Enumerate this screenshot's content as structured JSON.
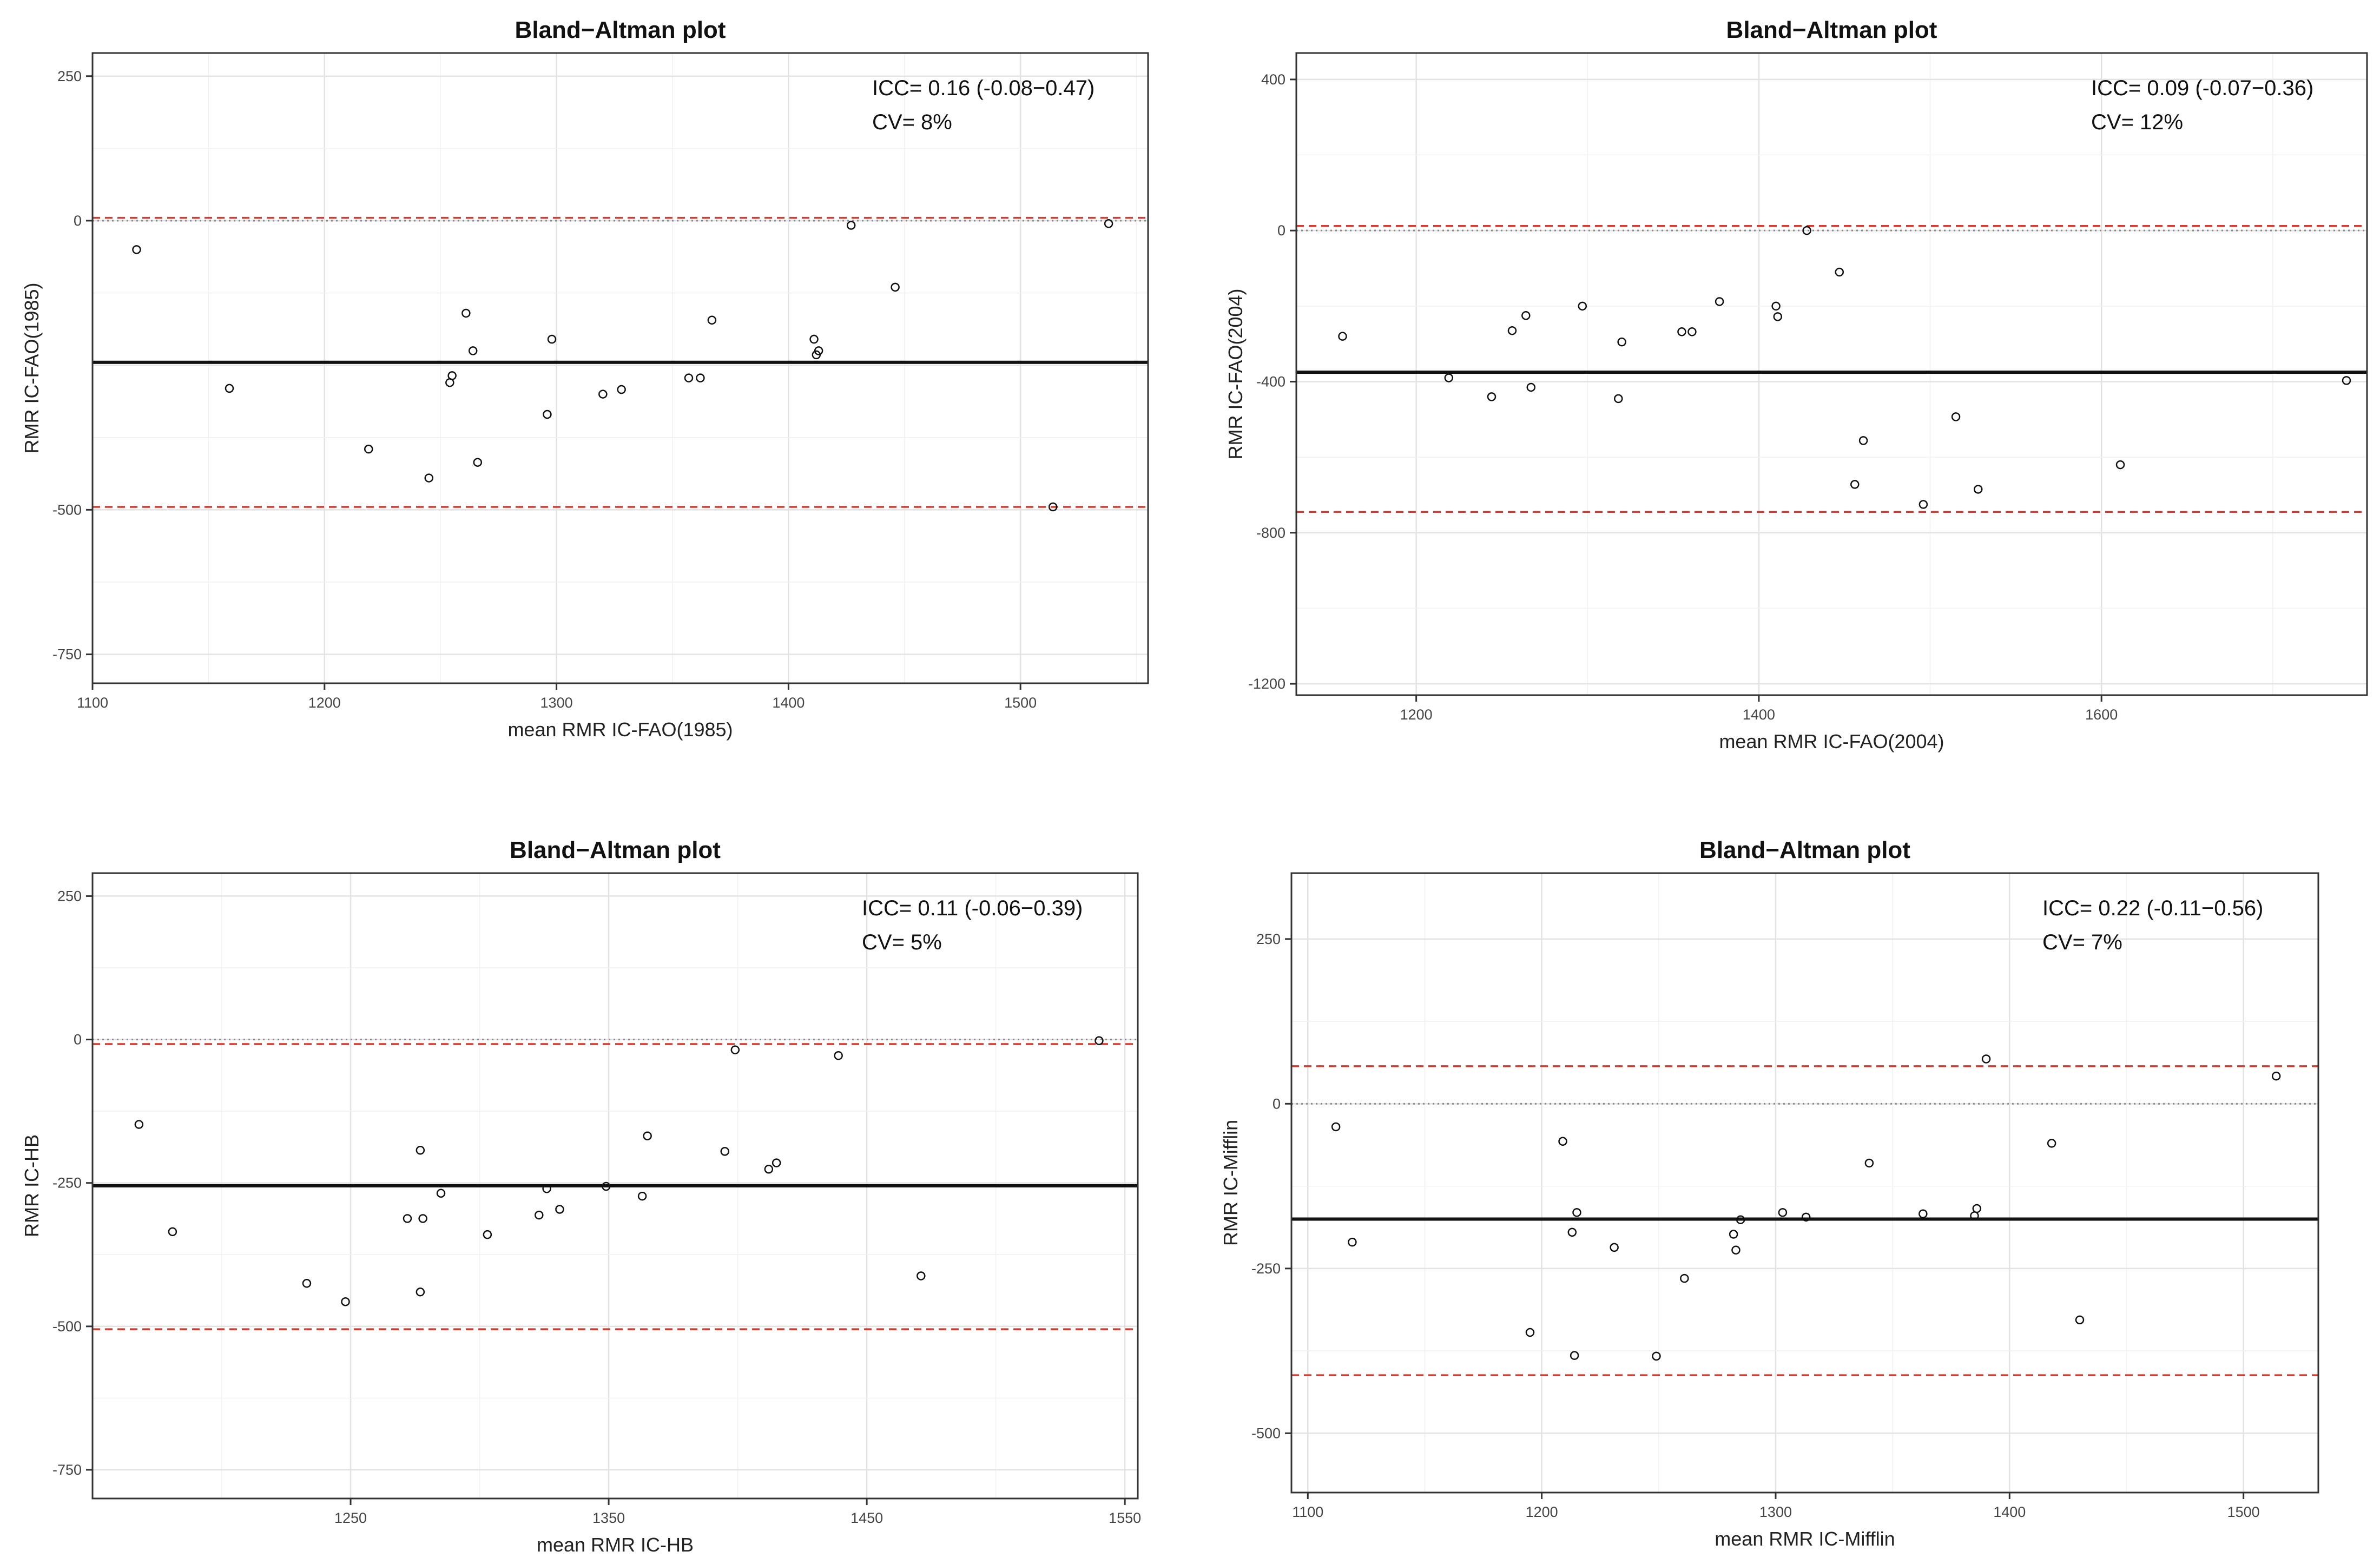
{
  "chart_data": [
    {
      "type": "scatter",
      "title": "Bland−Altman plot",
      "xlabel": "mean RMR IC-FAO(1985)",
      "ylabel": "RMR IC-FAO(1985)",
      "xlim": [
        1100,
        1555
      ],
      "ylim": [
        -800,
        290
      ],
      "xticks": [
        1100,
        1200,
        1300,
        1400,
        1500
      ],
      "yticks": [
        250,
        0,
        -500,
        -750
      ],
      "grid": true,
      "annotations": [
        "ICC= 0.16 (-0.08−0.47)",
        "CV= 8%"
      ],
      "mean_line": -245,
      "limits_of_agreement": [
        5,
        -495
      ],
      "zero_line": 0,
      "points": [
        {
          "x": 1119,
          "y": -50
        },
        {
          "x": 1159,
          "y": -290
        },
        {
          "x": 1219,
          "y": -395
        },
        {
          "x": 1245,
          "y": -445
        },
        {
          "x": 1254,
          "y": -280
        },
        {
          "x": 1255,
          "y": -268
        },
        {
          "x": 1261,
          "y": -160
        },
        {
          "x": 1264,
          "y": -225
        },
        {
          "x": 1266,
          "y": -418
        },
        {
          "x": 1296,
          "y": -335
        },
        {
          "x": 1298,
          "y": -205
        },
        {
          "x": 1320,
          "y": -300
        },
        {
          "x": 1328,
          "y": -292
        },
        {
          "x": 1357,
          "y": -272
        },
        {
          "x": 1362,
          "y": -272
        },
        {
          "x": 1367,
          "y": -172
        },
        {
          "x": 1411,
          "y": -205
        },
        {
          "x": 1412,
          "y": -232
        },
        {
          "x": 1413,
          "y": -225
        },
        {
          "x": 1427,
          "y": -8
        },
        {
          "x": 1446,
          "y": -115
        },
        {
          "x": 1514,
          "y": -495
        },
        {
          "x": 1538,
          "y": -5
        }
      ]
    },
    {
      "type": "scatter",
      "title": "Bland−Altman plot",
      "xlabel": "mean RMR IC-FAO(2004)",
      "ylabel": "RMR IC-FAO(2004)",
      "xlim": [
        1130,
        1755
      ],
      "ylim": [
        -1230,
        470
      ],
      "xticks": [
        1200,
        1400,
        1600
      ],
      "yticks": [
        400,
        0,
        -400,
        -800,
        -1200
      ],
      "grid": true,
      "annotations": [
        "ICC= 0.09 (-0.07−0.36)",
        "CV= 12%"
      ],
      "mean_line": -375,
      "limits_of_agreement": [
        12,
        -745
      ],
      "zero_line": 0,
      "points": [
        {
          "x": 1157,
          "y": -280
        },
        {
          "x": 1219,
          "y": -390
        },
        {
          "x": 1244,
          "y": -440
        },
        {
          "x": 1256,
          "y": -265
        },
        {
          "x": 1264,
          "y": -225
        },
        {
          "x": 1267,
          "y": -415
        },
        {
          "x": 1297,
          "y": -200
        },
        {
          "x": 1318,
          "y": -445
        },
        {
          "x": 1320,
          "y": -295
        },
        {
          "x": 1355,
          "y": -268
        },
        {
          "x": 1361,
          "y": -268
        },
        {
          "x": 1377,
          "y": -188
        },
        {
          "x": 1410,
          "y": -200
        },
        {
          "x": 1411,
          "y": -228
        },
        {
          "x": 1428,
          "y": 0
        },
        {
          "x": 1447,
          "y": -110
        },
        {
          "x": 1456,
          "y": -672
        },
        {
          "x": 1461,
          "y": -556
        },
        {
          "x": 1496,
          "y": -725
        },
        {
          "x": 1515,
          "y": -493
        },
        {
          "x": 1528,
          "y": -685
        },
        {
          "x": 1611,
          "y": -620
        },
        {
          "x": 1743,
          "y": -397
        }
      ]
    },
    {
      "type": "scatter",
      "title": "Bland−Altman plot",
      "xlabel": "mean RMR IC-HB",
      "ylabel": "RMR IC-HB",
      "xlim": [
        1150,
        1555
      ],
      "ylim": [
        -800,
        290
      ],
      "xticks": [
        1250,
        1350,
        1450,
        1550
      ],
      "yticks": [
        250,
        0,
        -250,
        -500,
        -750
      ],
      "grid": true,
      "annotations": [
        "ICC= 0.11 (-0.06−0.39)",
        "CV= 5%"
      ],
      "mean_line": -255,
      "limits_of_agreement": [
        -8,
        -505
      ],
      "zero_line": 0,
      "points": [
        {
          "x": 1168,
          "y": -148
        },
        {
          "x": 1181,
          "y": -335
        },
        {
          "x": 1233,
          "y": -425
        },
        {
          "x": 1248,
          "y": -457
        },
        {
          "x": 1272,
          "y": -312
        },
        {
          "x": 1277,
          "y": -193
        },
        {
          "x": 1278,
          "y": -312
        },
        {
          "x": 1277,
          "y": -440
        },
        {
          "x": 1285,
          "y": -268
        },
        {
          "x": 1303,
          "y": -340
        },
        {
          "x": 1323,
          "y": -306
        },
        {
          "x": 1326,
          "y": -260
        },
        {
          "x": 1331,
          "y": -296
        },
        {
          "x": 1349,
          "y": -256
        },
        {
          "x": 1363,
          "y": -273
        },
        {
          "x": 1365,
          "y": -168
        },
        {
          "x": 1395,
          "y": -195
        },
        {
          "x": 1399,
          "y": -18
        },
        {
          "x": 1412,
          "y": -226
        },
        {
          "x": 1415,
          "y": -215
        },
        {
          "x": 1439,
          "y": -28
        },
        {
          "x": 1471,
          "y": -412
        },
        {
          "x": 1540,
          "y": -2
        }
      ]
    },
    {
      "type": "scatter",
      "title": "Bland−Altman plot",
      "xlabel": "mean RMR IC-Mifflin",
      "ylabel": "RMR IC-Mifflin",
      "xlim": [
        1093,
        1532
      ],
      "ylim": [
        -590,
        350
      ],
      "xticks": [
        1100,
        1200,
        1300,
        1400,
        1500
      ],
      "yticks": [
        250,
        0,
        -250,
        -500
      ],
      "grid": true,
      "annotations": [
        "ICC= 0.22 (-0.11−0.56)",
        "CV= 7%"
      ],
      "mean_line": -175,
      "limits_of_agreement": [
        57,
        -412
      ],
      "zero_line": 0,
      "points": [
        {
          "x": 1112,
          "y": -35
        },
        {
          "x": 1119,
          "y": -210
        },
        {
          "x": 1195,
          "y": -347
        },
        {
          "x": 1209,
          "y": -57
        },
        {
          "x": 1213,
          "y": -195
        },
        {
          "x": 1214,
          "y": -382
        },
        {
          "x": 1215,
          "y": -165
        },
        {
          "x": 1231,
          "y": -218
        },
        {
          "x": 1249,
          "y": -383
        },
        {
          "x": 1261,
          "y": -265
        },
        {
          "x": 1282,
          "y": -198
        },
        {
          "x": 1283,
          "y": -222
        },
        {
          "x": 1285,
          "y": -176
        },
        {
          "x": 1303,
          "y": -165
        },
        {
          "x": 1313,
          "y": -172
        },
        {
          "x": 1340,
          "y": -90
        },
        {
          "x": 1363,
          "y": -167
        },
        {
          "x": 1385,
          "y": -170
        },
        {
          "x": 1386,
          "y": -159
        },
        {
          "x": 1390,
          "y": 68
        },
        {
          "x": 1418,
          "y": -60
        },
        {
          "x": 1430,
          "y": -328
        },
        {
          "x": 1514,
          "y": 42
        }
      ]
    }
  ]
}
